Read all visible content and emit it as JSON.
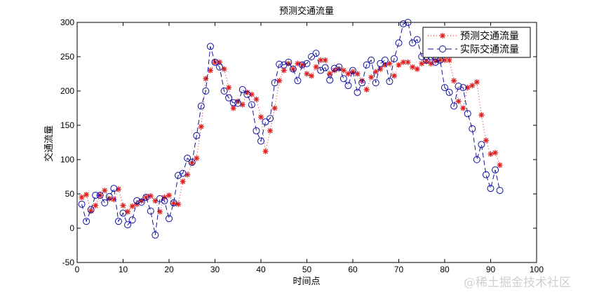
{
  "chart_data": {
    "type": "line",
    "title": "预测交通流量",
    "xlabel": "时间点",
    "ylabel": "交通流量",
    "xlim": [
      0,
      100
    ],
    "ylim": [
      -50,
      300
    ],
    "xticks": [
      0,
      10,
      20,
      30,
      40,
      50,
      60,
      70,
      80,
      90,
      100
    ],
    "yticks": [
      -50,
      0,
      50,
      100,
      150,
      200,
      250,
      300
    ],
    "grid": false,
    "legend_position": "upper right",
    "x": [
      1,
      2,
      3,
      4,
      5,
      6,
      7,
      8,
      9,
      10,
      11,
      12,
      13,
      14,
      15,
      16,
      17,
      18,
      19,
      20,
      21,
      22,
      23,
      24,
      25,
      26,
      27,
      28,
      29,
      30,
      31,
      32,
      33,
      34,
      35,
      36,
      37,
      38,
      39,
      40,
      41,
      42,
      43,
      44,
      45,
      46,
      47,
      48,
      49,
      50,
      51,
      52,
      53,
      54,
      55,
      56,
      57,
      58,
      59,
      60,
      61,
      62,
      63,
      64,
      65,
      66,
      67,
      68,
      69,
      70,
      71,
      72,
      73,
      74,
      75,
      76,
      77,
      78,
      79,
      80,
      81,
      82,
      83,
      84,
      85,
      86,
      87,
      88,
      89,
      90,
      91,
      92
    ],
    "series": [
      {
        "name": "预测交通流量",
        "style": "dotted-star",
        "color": "#e02020",
        "values": [
          45,
          49,
          25,
          33,
          48,
          55,
          43,
          42,
          57,
          33,
          24,
          32,
          35,
          40,
          45,
          47,
          40,
          24,
          45,
          48,
          36,
          35,
          68,
          78,
          95,
          102,
          148,
          218,
          230,
          242,
          242,
          232,
          205,
          175,
          185,
          180,
          198,
          195,
          188,
          162,
          112,
          142,
          175,
          215,
          230,
          240,
          232,
          240,
          238,
          225,
          222,
          235,
          245,
          245,
          225,
          230,
          232,
          230,
          225,
          228,
          225,
          215,
          202,
          220,
          228,
          232,
          238,
          240,
          222,
          238,
          242,
          242,
          235,
          232,
          240,
          243,
          240,
          244,
          245,
          245,
          245,
          215,
          185,
          175,
          205,
          208,
          213,
          165,
          128,
          108,
          110,
          92
        ]
      },
      {
        "name": "实际交通流量",
        "style": "dashed-circle",
        "color": "#1010a0",
        "values": [
          35,
          10,
          27,
          48,
          48,
          37,
          46,
          58,
          10,
          22,
          5,
          12,
          40,
          38,
          45,
          25,
          -10,
          43,
          40,
          14,
          37,
          77,
          80,
          102,
          96,
          135,
          178,
          200,
          265,
          242,
          235,
          200,
          190,
          183,
          182,
          202,
          195,
          180,
          142,
          127,
          155,
          160,
          212,
          239,
          238,
          242,
          232,
          215,
          238,
          240,
          250,
          255,
          230,
          234,
          216,
          233,
          235,
          218,
          208,
          230,
          198,
          212,
          238,
          245,
          212,
          240,
          245,
          214,
          247,
          270,
          298,
          300,
          270,
          275,
          250,
          245,
          250,
          242,
          245,
          205,
          198,
          178,
          207,
          205,
          167,
          145,
          100,
          122,
          78,
          58,
          85,
          55
        ]
      }
    ]
  },
  "chart": {
    "title": "预测交通流量",
    "xlabel": "时间点",
    "ylabel": "交通流量",
    "legend": [
      "预测交通流量",
      "实际交通流量"
    ]
  },
  "watermark": "@稀土掘金技术社区"
}
